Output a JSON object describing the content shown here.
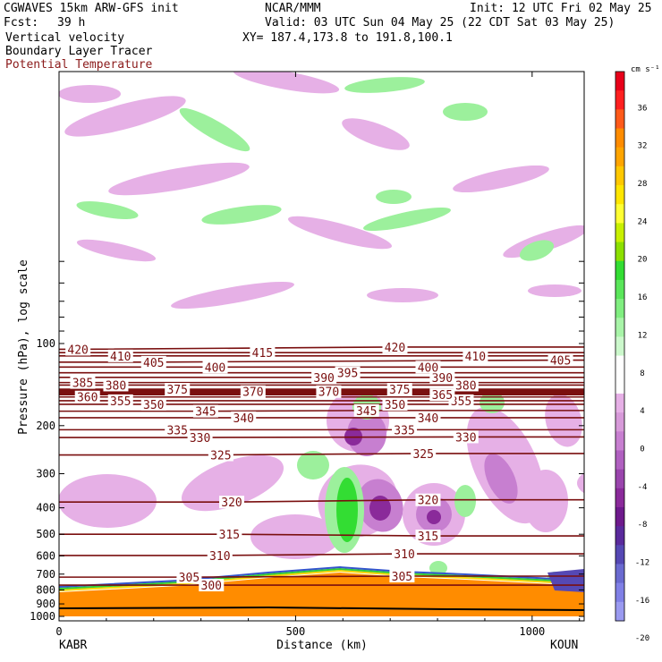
{
  "header": {
    "model": "CGWAVES 15km ARW-GFS init",
    "org": "NCAR/MMM",
    "init": "Init: 12 UTC Fri 02 May 25",
    "fcst_label": "Fcst:",
    "fcst_value": "39 h",
    "valid": "Valid: 03 UTC Sun 04 May 25 (22 CDT Sat 03 May 25)",
    "field1": "Vertical velocity",
    "field2": "Boundary Layer Tracer",
    "field3": "Potential Temperature",
    "xy": "XY= 187.4,173.8 to 191.8,100.1"
  },
  "colors": {
    "theta_line": "#7a0f0f",
    "upward_green": "#9cf09c",
    "upward_green_strong": "#33dd33",
    "down_light": "#e6b0e6",
    "down_mid": "#c77fd0",
    "down_strong": "#8a2a9a",
    "tracer_orange": "#ff8c00",
    "terrain": "#000000"
  },
  "chart_data": {
    "type": "heatmap",
    "xlabel": "Distance (km)",
    "ylabel": "Pressure (hPa), log scale",
    "x_ticks": [
      0,
      500,
      1000
    ],
    "xlim": [
      0,
      1110
    ],
    "y_ticks": [
      100,
      200,
      300,
      400,
      500,
      600,
      700,
      800,
      900,
      1000
    ],
    "y_scale": "log",
    "ylim": [
      1000,
      45
    ],
    "left_endpoint": "KABR",
    "right_endpoint": "KOUN",
    "colorbar": {
      "unit": "cm s⁻¹",
      "ticks": [
        36,
        32,
        28,
        24,
        20,
        16,
        12,
        8,
        4,
        0,
        -4,
        -8,
        -12,
        -16,
        -20
      ],
      "colors": [
        "#e8001a",
        "#ff2020",
        "#ff5a1a",
        "#ff8c00",
        "#ffa500",
        "#ffc800",
        "#ffe600",
        "#ffff33",
        "#c8f000",
        "#8ce000",
        "#33dd33",
        "#5ae65a",
        "#80ee80",
        "#a8f4a8",
        "#ccf8cc",
        "#ffffff",
        "#ffffff",
        "#e6b0e6",
        "#d79ad9",
        "#c77fd0",
        "#b060c0",
        "#9a45ad",
        "#8a2a9a",
        "#6e1a8c",
        "#5a2a9c",
        "#5548b4",
        "#6a6ad0",
        "#8080e6",
        "#9a9af0"
      ]
    },
    "theta_contours": [
      {
        "label": "300",
        "label_x": 322,
        "label_p": 768
      },
      {
        "label": "305",
        "label_x": 275,
        "label_p": 718
      },
      {
        "label": "305",
        "label_x": 725,
        "label_p": 712
      },
      {
        "label": "310",
        "label_x": 340,
        "label_p": 598
      },
      {
        "label": "310",
        "label_x": 730,
        "label_p": 590
      },
      {
        "label": "315",
        "label_x": 360,
        "label_p": 500
      },
      {
        "label": "315",
        "label_x": 780,
        "label_p": 507
      },
      {
        "label": "320",
        "label_x": 365,
        "label_p": 381
      },
      {
        "label": "320",
        "label_x": 780,
        "label_p": 374
      },
      {
        "label": "325",
        "label_x": 342,
        "label_p": 256
      },
      {
        "label": "325",
        "label_x": 770,
        "label_p": 253
      },
      {
        "label": "330",
        "label_x": 298,
        "label_p": 221
      },
      {
        "label": "330",
        "label_x": 860,
        "label_p": 220
      },
      {
        "label": "335",
        "label_x": 250,
        "label_p": 207
      },
      {
        "label": "335",
        "label_x": 730,
        "label_p": 207
      },
      {
        "label": "340",
        "label_x": 390,
        "label_p": 187
      },
      {
        "label": "340",
        "label_x": 780,
        "label_p": 187
      },
      {
        "label": "345",
        "label_x": 310,
        "label_p": 177
      },
      {
        "label": "345",
        "label_x": 650,
        "label_p": 176
      },
      {
        "label": "350",
        "label_x": 200,
        "label_p": 167
      },
      {
        "label": "350",
        "label_x": 710,
        "label_p": 167
      },
      {
        "label": "355",
        "label_x": 130,
        "label_p": 162
      },
      {
        "label": "355",
        "label_x": 850,
        "label_p": 162
      },
      {
        "label": "360",
        "label_x": 60,
        "label_p": 157
      },
      {
        "label": "365",
        "label_x": 810,
        "label_p": 154
      },
      {
        "label": "370",
        "label_x": 410,
        "label_p": 150
      },
      {
        "label": "370",
        "label_x": 570,
        "label_p": 150
      },
      {
        "label": "375",
        "label_x": 250,
        "label_p": 147
      },
      {
        "label": "375",
        "label_x": 720,
        "label_p": 147
      },
      {
        "label": "380",
        "label_x": 120,
        "label_p": 142
      },
      {
        "label": "380",
        "label_x": 860,
        "label_p": 142
      },
      {
        "label": "385",
        "label_x": 50,
        "label_p": 139
      },
      {
        "label": "390",
        "label_x": 560,
        "label_p": 133
      },
      {
        "label": "390",
        "label_x": 810,
        "label_p": 133
      },
      {
        "label": "395",
        "label_x": 610,
        "label_p": 128
      },
      {
        "label": "400",
        "label_x": 330,
        "label_p": 122
      },
      {
        "label": "400",
        "label_x": 780,
        "label_p": 122
      },
      {
        "label": "405",
        "label_x": 200,
        "label_p": 117
      },
      {
        "label": "405",
        "label_x": 1060,
        "label_p": 115
      },
      {
        "label": "410",
        "label_x": 130,
        "label_p": 111
      },
      {
        "label": "410",
        "label_x": 880,
        "label_p": 111
      },
      {
        "label": "415",
        "label_x": 430,
        "label_p": 108
      },
      {
        "label": "420",
        "label_x": 40,
        "label_p": 105
      },
      {
        "label": "420",
        "label_x": 710,
        "label_p": 103
      }
    ]
  }
}
